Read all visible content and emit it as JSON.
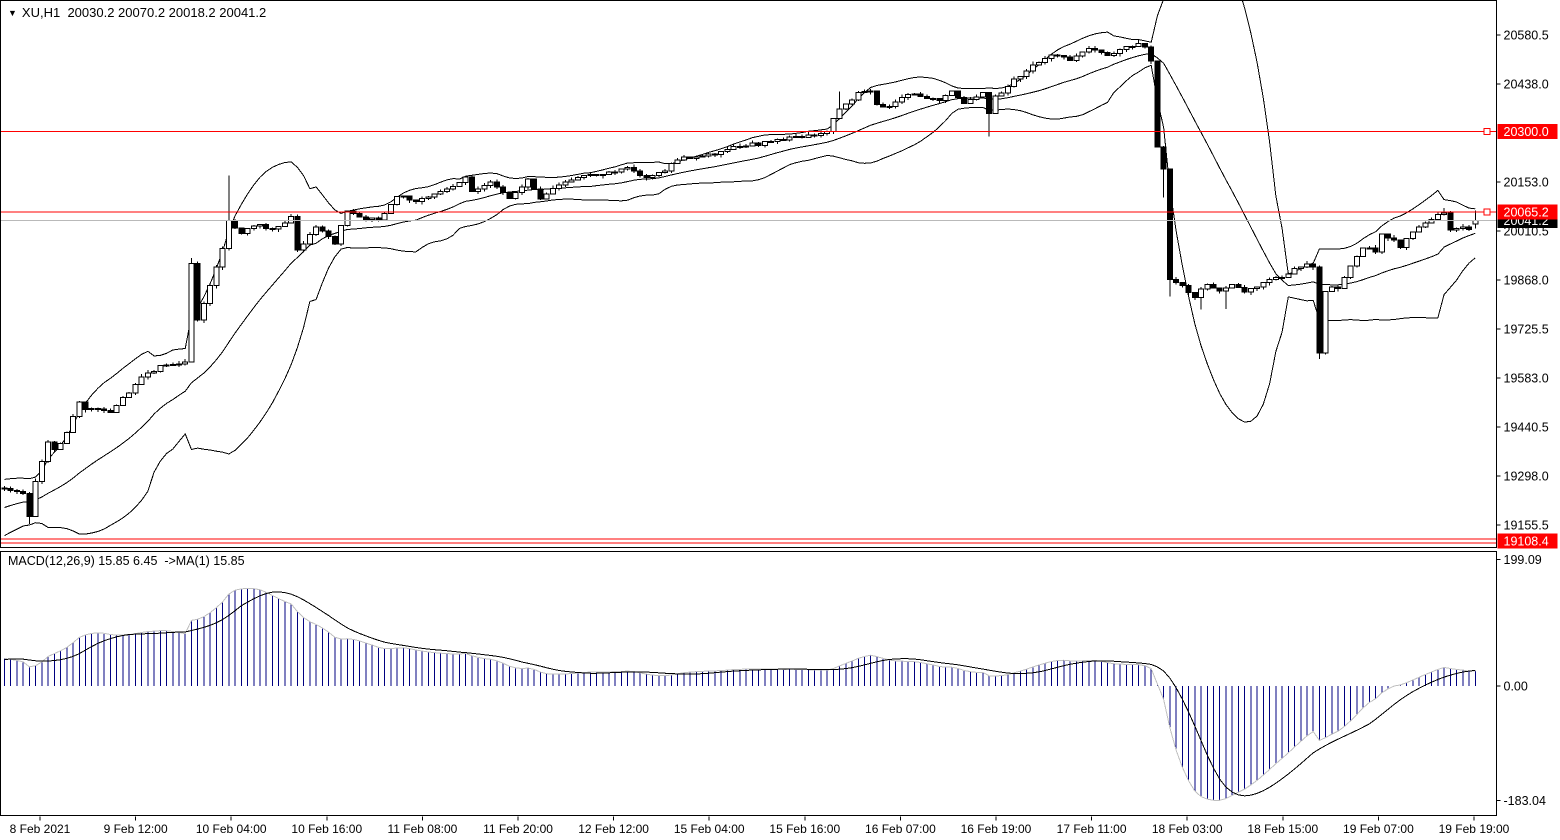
{
  "header": {
    "symbol": "XU,H1",
    "values": "20030.2 20070.2 20018.2 20041.2"
  },
  "macd": {
    "label": "MACD(12,26,9) 15.85 6.45  ->MA(1) 15.85"
  },
  "colors": {
    "background": "#FFFFFF",
    "border": "#000000",
    "candle_up_fill": "#FFFFFF",
    "candle_down_fill": "#000000",
    "candle_outline": "#000000",
    "bollinger_line": "#000000",
    "hline_red": "#FF0000",
    "current_price_line": "#B9B9B9",
    "macd_bar": "#000080",
    "macd_envelope": "#C0C0C0",
    "macd_signal": "#000000",
    "badge_red_bg": "#FF0000",
    "badge_black_bg": "#000000",
    "badge_text": "#FFFFFF",
    "axis_text": "#000000"
  },
  "chart_data": {
    "type": "candlestick",
    "symbol": "XU",
    "timeframe": "H1",
    "last_bar_ohlc": [
      20030.2,
      20070.2,
      20018.2,
      20041.2
    ],
    "current_price": 20041.2,
    "price_axis_ticks": [
      20580.5,
      20438.0,
      20153.0,
      20010.5,
      19868.0,
      19725.5,
      19583.0,
      19440.5,
      19298.0,
      19155.5
    ],
    "hlines": [
      {
        "price": 20300.0,
        "label": "20300.0",
        "handle": true,
        "double": false
      },
      {
        "price": 20065.2,
        "label": "20065.2",
        "handle": true,
        "double": false
      },
      {
        "price": 19108.4,
        "label": "19108.4",
        "handle": false,
        "double": true
      }
    ],
    "time_axis_labels": [
      "8 Feb 2021",
      "9 Feb 12:00",
      "10 Feb 04:00",
      "10 Feb 16:00",
      "11 Feb 08:00",
      "11 Feb 20:00",
      "12 Feb 12:00",
      "15 Feb 04:00",
      "15 Feb 16:00",
      "16 Feb 07:00",
      "16 Feb 19:00",
      "17 Feb 11:00",
      "18 Feb 03:00",
      "18 Feb 15:00",
      "19 Feb 07:00",
      "19 Feb 19:00"
    ],
    "macd_axis": {
      "max": "199.09",
      "zero": "0.00",
      "min": "-183.04"
    },
    "indicators": {
      "bollinger": {
        "period": 20,
        "deviation": 2
      },
      "macd": {
        "fast": 12,
        "slow": 26,
        "signal": 9,
        "value": 15.85,
        "prev": 6.45
      }
    },
    "bar_count": 237,
    "close_anchors": [
      [
        -25,
        19060
      ],
      [
        -18,
        19150
      ],
      [
        -10,
        19200
      ],
      [
        -5,
        19245
      ],
      [
        -1,
        19262
      ],
      [
        0,
        19265
      ],
      [
        2,
        19252
      ],
      [
        3,
        19250
      ],
      [
        4,
        19185
      ],
      [
        5,
        19280
      ],
      [
        7,
        19395
      ],
      [
        8,
        19370
      ],
      [
        10,
        19425
      ],
      [
        12,
        19515
      ],
      [
        13,
        19492
      ],
      [
        17,
        19487
      ],
      [
        20,
        19540
      ],
      [
        22,
        19590
      ],
      [
        25,
        19615
      ],
      [
        28,
        19622
      ],
      [
        29,
        19627
      ],
      [
        30,
        19915
      ],
      [
        31,
        19752
      ],
      [
        33,
        19850
      ],
      [
        35,
        19958
      ],
      [
        36,
        20045
      ],
      [
        38,
        20000
      ],
      [
        40,
        20028
      ],
      [
        43,
        20018
      ],
      [
        46,
        20048
      ],
      [
        47,
        19958
      ],
      [
        48,
        19976
      ],
      [
        50,
        20026
      ],
      [
        52,
        19992
      ],
      [
        53,
        19976
      ],
      [
        55,
        20070
      ],
      [
        57,
        20052
      ],
      [
        60,
        20040
      ],
      [
        63,
        20113
      ],
      [
        66,
        20098
      ],
      [
        69,
        20120
      ],
      [
        72,
        20136
      ],
      [
        74,
        20170
      ],
      [
        75,
        20122
      ],
      [
        78,
        20150
      ],
      [
        81,
        20106
      ],
      [
        84,
        20158
      ],
      [
        86,
        20108
      ],
      [
        89,
        20145
      ],
      [
        92,
        20165
      ],
      [
        95,
        20176
      ],
      [
        98,
        20182
      ],
      [
        100,
        20196
      ],
      [
        103,
        20162
      ],
      [
        106,
        20190
      ],
      [
        109,
        20224
      ],
      [
        113,
        20232
      ],
      [
        117,
        20252
      ],
      [
        121,
        20264
      ],
      [
        126,
        20280
      ],
      [
        130,
        20290
      ],
      [
        132,
        20300
      ],
      [
        134,
        20365
      ],
      [
        137,
        20410
      ],
      [
        139,
        20420
      ],
      [
        140,
        20380
      ],
      [
        142,
        20372
      ],
      [
        144,
        20400
      ],
      [
        147,
        20406
      ],
      [
        150,
        20386
      ],
      [
        152,
        20412
      ],
      [
        154,
        20382
      ],
      [
        157,
        20410
      ],
      [
        158,
        20356
      ],
      [
        159,
        20400
      ],
      [
        162,
        20448
      ],
      [
        165,
        20490
      ],
      [
        168,
        20520
      ],
      [
        171,
        20510
      ],
      [
        174,
        20538
      ],
      [
        177,
        20524
      ],
      [
        180,
        20544
      ],
      [
        182,
        20554
      ],
      [
        183,
        20540
      ],
      [
        184,
        20500
      ],
      [
        185,
        20255
      ],
      [
        186,
        20190
      ],
      [
        187,
        19865
      ],
      [
        189,
        19848
      ],
      [
        191,
        19820
      ],
      [
        193,
        19858
      ],
      [
        195,
        19832
      ],
      [
        197,
        19856
      ],
      [
        199,
        19830
      ],
      [
        201,
        19850
      ],
      [
        203,
        19868
      ],
      [
        205,
        19878
      ],
      [
        207,
        19898
      ],
      [
        209,
        19912
      ],
      [
        210,
        19905
      ],
      [
        211,
        19660
      ],
      [
        212,
        19840
      ],
      [
        214,
        19846
      ],
      [
        216,
        19905
      ],
      [
        217,
        19938
      ],
      [
        218,
        19962
      ],
      [
        220,
        19954
      ],
      [
        221,
        20006
      ],
      [
        223,
        19984
      ],
      [
        224,
        19962
      ],
      [
        226,
        20008
      ],
      [
        228,
        20036
      ],
      [
        230,
        20058
      ],
      [
        231,
        20066
      ],
      [
        232,
        20013
      ],
      [
        234,
        20026
      ],
      [
        235,
        20020
      ],
      [
        236,
        20041.2
      ]
    ],
    "wick_overrides": {
      "4": {
        "lo": 19158
      },
      "30": {
        "hi": 19932
      },
      "36": {
        "hi": 20172
      },
      "134": {
        "hi": 20416
      },
      "158": {
        "lo": 20286
      },
      "183": {
        "hi": 20553
      },
      "186": {
        "lo": 20108
      },
      "187": {
        "lo": 19820
      },
      "192": {
        "lo": 19782
      },
      "196": {
        "lo": 19784
      },
      "211": {
        "lo": 19638
      },
      "231": {
        "hi": 20078
      }
    }
  }
}
